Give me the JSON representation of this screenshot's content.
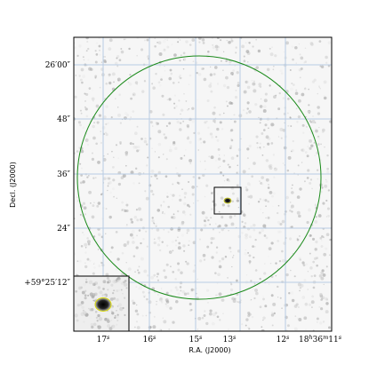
{
  "axes": {
    "x_label": "R.A. (J2000)",
    "y_label": "Decl. (J2000)",
    "x_ticks": [
      [
        "17",
        "s"
      ],
      [
        "16",
        "s"
      ],
      [
        "15",
        "s"
      ],
      [
        "13",
        "s"
      ],
      [
        "12",
        "s"
      ],
      [
        "18",
        "h",
        "36",
        "m",
        "11",
        "s"
      ]
    ],
    "y_ticks": [
      "26′00″",
      "48″",
      "36″",
      "24″",
      "+59°25′12″"
    ]
  }
}
